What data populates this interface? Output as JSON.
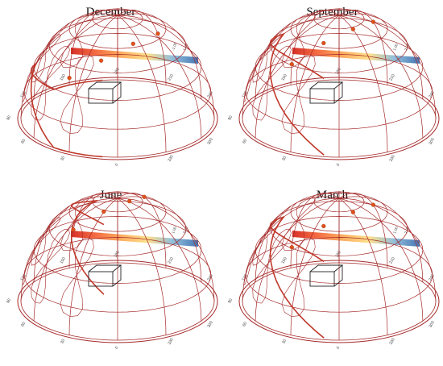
{
  "panels": [
    {
      "title": "December",
      "sun_positions": 4,
      "colorbar_labels": [
        "-1.00",
        "1.00"
      ]
    },
    {
      "title": "September",
      "sun_positions": 4,
      "colorbar_labels": [
        "1.00",
        "2.00"
      ]
    },
    {
      "title": "June",
      "sun_positions": 4,
      "colorbar_labels": [
        "1.00",
        "2.00"
      ]
    },
    {
      "title": "March",
      "sun_positions": 4,
      "colorbar_labels": [
        "1.00",
        "2.00"
      ]
    }
  ],
  "compass_labels": [
    "0",
    "30",
    "60",
    "90",
    "120",
    "150",
    "180",
    "210",
    "240",
    "270",
    "300",
    "330"
  ],
  "colors": {
    "sunpath": "#a52a2a",
    "sun_marker": "#e0521a",
    "building": "#222222",
    "gradient": [
      "#d73027",
      "#f46d43",
      "#fdae61",
      "#fee08b",
      "#91bfdb",
      "#4575b4"
    ]
  }
}
